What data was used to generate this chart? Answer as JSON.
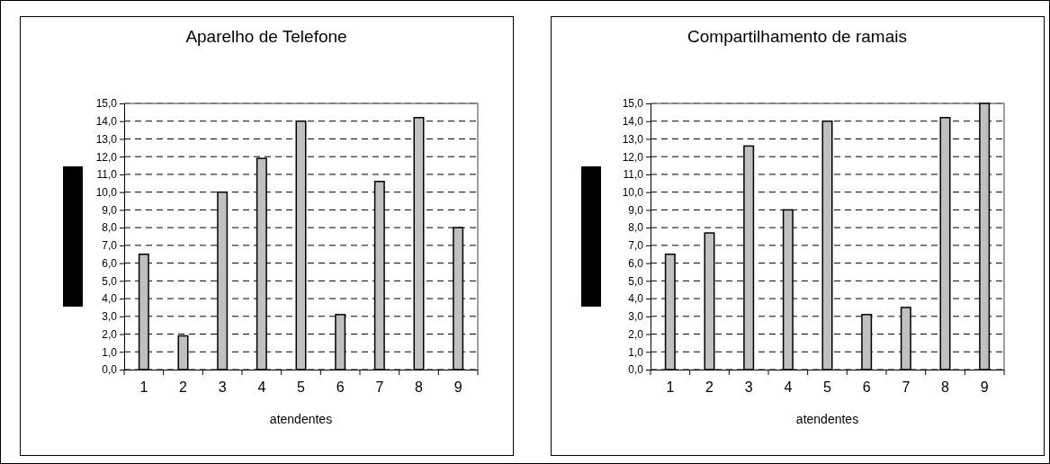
{
  "chart_data": [
    {
      "type": "bar",
      "title": "Aparelho de Telefone",
      "xlabel": "atendentes",
      "categories": [
        "1",
        "2",
        "3",
        "4",
        "5",
        "6",
        "7",
        "8",
        "9"
      ],
      "color": "#c0c0c0",
      "values": [
        6.5,
        1.9,
        10,
        11.9,
        14,
        3.1,
        10.6,
        14.2,
        8
      ],
      "ylim": [
        0,
        15
      ],
      "yticks": [
        {
          "value": 0,
          "label": "0,0"
        },
        {
          "value": 1,
          "label": "1,0"
        },
        {
          "value": 2,
          "label": "2,0"
        },
        {
          "value": 3,
          "label": "3,0"
        },
        {
          "value": 4,
          "label": "4,0"
        },
        {
          "value": 5,
          "label": "5,0"
        },
        {
          "value": 6,
          "label": "6,0"
        },
        {
          "value": 7,
          "label": "7,0"
        },
        {
          "value": 8,
          "label": "8,0"
        },
        {
          "value": 9,
          "label": "9,0"
        },
        {
          "value": 10,
          "label": "10,0"
        },
        {
          "value": 11,
          "label": "11,0"
        },
        {
          "value": 12,
          "label": "12,0"
        },
        {
          "value": 13,
          "label": "13,0"
        },
        {
          "value": 14,
          "label": "14,0"
        },
        {
          "value": 15,
          "label": "15,0"
        }
      ],
      "grid": "y",
      "line_style": "dashed"
    },
    {
      "type": "bar",
      "title": "Compartilhamento de ramais",
      "xlabel": "atendentes",
      "categories": [
        "1",
        "2",
        "3",
        "4",
        "5",
        "6",
        "7",
        "8",
        "9"
      ],
      "color": "#c0c0c0",
      "values": [
        6.5,
        7.7,
        12.6,
        9,
        14,
        3.1,
        3.5,
        14.2,
        15
      ],
      "ylim": [
        0,
        15
      ],
      "yticks": [
        {
          "value": 0,
          "label": "0,0"
        },
        {
          "value": 1,
          "label": "1,0"
        },
        {
          "value": 2,
          "label": "2,0"
        },
        {
          "value": 3,
          "label": "3,0"
        },
        {
          "value": 4,
          "label": "4,0"
        },
        {
          "value": 5,
          "label": "5,0"
        },
        {
          "value": 6,
          "label": "6,0"
        },
        {
          "value": 7,
          "label": "7,0"
        },
        {
          "value": 8,
          "label": "8,0"
        },
        {
          "value": 9,
          "label": "9,0"
        },
        {
          "value": 10,
          "label": "10,0"
        },
        {
          "value": 11,
          "label": "11,0"
        },
        {
          "value": 12,
          "label": "12,0"
        },
        {
          "value": 13,
          "label": "13,0"
        },
        {
          "value": 14,
          "label": "14,0"
        },
        {
          "value": 15,
          "label": "15,0"
        }
      ],
      "grid": "y",
      "line_style": "dashed"
    }
  ]
}
